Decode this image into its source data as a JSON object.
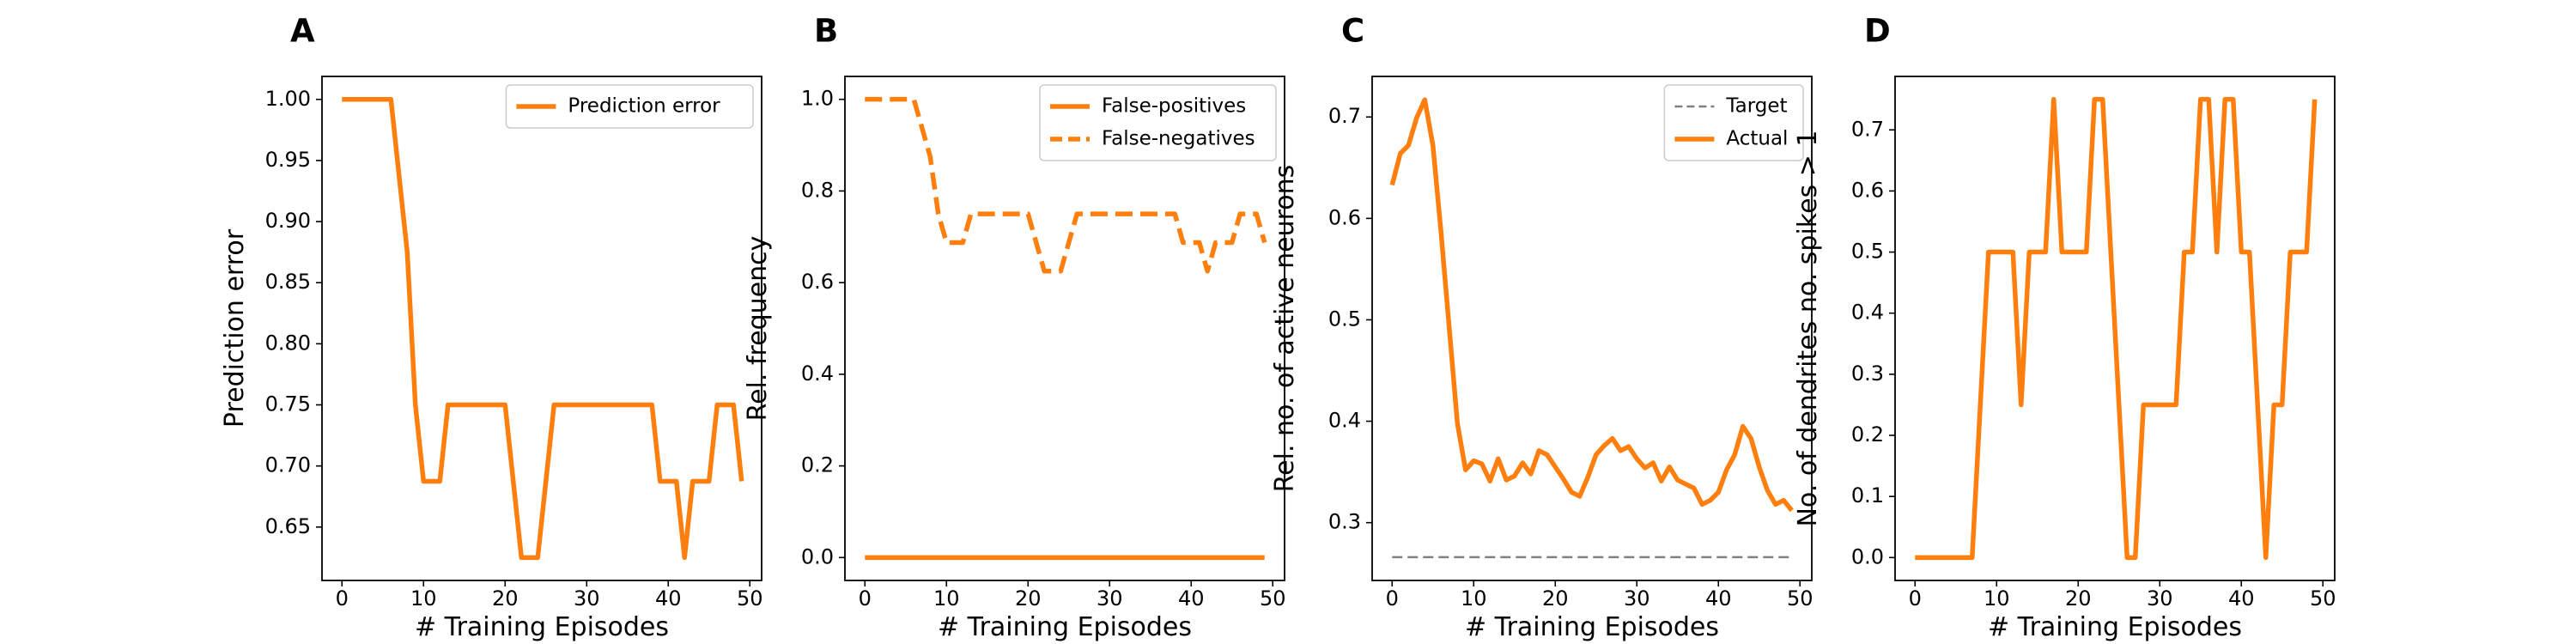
{
  "chart_data": [
    {
      "panel": "A",
      "type": "line",
      "xlabel": "# Training Episodes",
      "ylabel": "Prediction error",
      "xlim": [
        -2.45,
        51.45
      ],
      "ylim": [
        0.6063,
        1.0188
      ],
      "xticks": [
        0,
        10,
        20,
        30,
        40,
        50
      ],
      "yticks": [
        0.65,
        0.7,
        0.75,
        0.8,
        0.85,
        0.9,
        0.95,
        1.0
      ],
      "ytick_labels": [
        "0.65",
        "0.70",
        "0.75",
        "0.80",
        "0.85",
        "0.90",
        "0.95",
        "1.00"
      ],
      "legend_position": "top-right",
      "grid": false,
      "series": [
        {
          "name": "Prediction error",
          "color": "#ff7f0e",
          "style": "solid",
          "x": [
            0,
            1,
            2,
            3,
            4,
            5,
            6,
            7,
            8,
            9,
            10,
            11,
            12,
            13,
            14,
            15,
            16,
            17,
            18,
            19,
            20,
            21,
            22,
            23,
            24,
            25,
            26,
            27,
            28,
            29,
            30,
            31,
            32,
            33,
            34,
            35,
            36,
            37,
            38,
            39,
            40,
            41,
            42,
            43,
            44,
            45,
            46,
            47,
            48,
            49
          ],
          "y": [
            1.0,
            1.0,
            1.0,
            1.0,
            1.0,
            1.0,
            1.0,
            0.9375,
            0.875,
            0.75,
            0.6875,
            0.6875,
            0.6875,
            0.75,
            0.75,
            0.75,
            0.75,
            0.75,
            0.75,
            0.75,
            0.75,
            0.6875,
            0.625,
            0.625,
            0.625,
            0.6875,
            0.75,
            0.75,
            0.75,
            0.75,
            0.75,
            0.75,
            0.75,
            0.75,
            0.75,
            0.75,
            0.75,
            0.75,
            0.75,
            0.6875,
            0.6875,
            0.6875,
            0.625,
            0.6875,
            0.6875,
            0.6875,
            0.75,
            0.75,
            0.75,
            0.6875
          ]
        }
      ]
    },
    {
      "panel": "B",
      "type": "line",
      "xlabel": "# Training Episodes",
      "ylabel": "Rel. frequency",
      "xlim": [
        -2.45,
        51.45
      ],
      "ylim": [
        -0.05,
        1.05
      ],
      "xticks": [
        0,
        10,
        20,
        30,
        40,
        50
      ],
      "yticks": [
        0.0,
        0.2,
        0.4,
        0.6,
        0.8,
        1.0
      ],
      "ytick_labels": [
        "0.0",
        "0.2",
        "0.4",
        "0.6",
        "0.8",
        "1.0"
      ],
      "legend_position": "top-right",
      "grid": false,
      "series": [
        {
          "name": "False-positives",
          "color": "#ff7f0e",
          "style": "solid",
          "x": [
            0,
            49
          ],
          "y": [
            0.0,
            0.0
          ]
        },
        {
          "name": "False-negatives",
          "color": "#ff7f0e",
          "style": "dashed",
          "x": [
            0,
            1,
            2,
            3,
            4,
            5,
            6,
            7,
            8,
            9,
            10,
            11,
            12,
            13,
            14,
            15,
            16,
            17,
            18,
            19,
            20,
            21,
            22,
            23,
            24,
            25,
            26,
            27,
            28,
            29,
            30,
            31,
            32,
            33,
            34,
            35,
            36,
            37,
            38,
            39,
            40,
            41,
            42,
            43,
            44,
            45,
            46,
            47,
            48,
            49
          ],
          "y": [
            1.0,
            1.0,
            1.0,
            1.0,
            1.0,
            1.0,
            1.0,
            0.9375,
            0.875,
            0.75,
            0.6875,
            0.6875,
            0.6875,
            0.75,
            0.75,
            0.75,
            0.75,
            0.75,
            0.75,
            0.75,
            0.75,
            0.6875,
            0.625,
            0.625,
            0.625,
            0.6875,
            0.75,
            0.75,
            0.75,
            0.75,
            0.75,
            0.75,
            0.75,
            0.75,
            0.75,
            0.75,
            0.75,
            0.75,
            0.75,
            0.6875,
            0.6875,
            0.6875,
            0.625,
            0.6875,
            0.6875,
            0.6875,
            0.75,
            0.75,
            0.75,
            0.6875
          ]
        }
      ]
    },
    {
      "panel": "C",
      "type": "line",
      "xlabel": "# Training Episodes",
      "ylabel": "Rel. no. of active neurons",
      "xlim": [
        -2.45,
        51.45
      ],
      "ylim": [
        0.243,
        0.74
      ],
      "xticks": [
        0,
        10,
        20,
        30,
        40,
        50
      ],
      "yticks": [
        0.3,
        0.4,
        0.5,
        0.6,
        0.7
      ],
      "ytick_labels": [
        "0.3",
        "0.4",
        "0.5",
        "0.6",
        "0.7"
      ],
      "legend_position": "top-right",
      "grid": false,
      "series": [
        {
          "name": "Target",
          "color": "#808080",
          "style": "dashed",
          "x": [
            0,
            49
          ],
          "y": [
            0.266,
            0.266
          ]
        },
        {
          "name": "Actual",
          "color": "#ff7f0e",
          "style": "solid",
          "x": [
            0,
            1,
            2,
            3,
            4,
            5,
            6,
            7,
            8,
            9,
            10,
            11,
            12,
            13,
            14,
            15,
            16,
            17,
            18,
            19,
            20,
            21,
            22,
            23,
            24,
            25,
            26,
            27,
            28,
            29,
            30,
            31,
            32,
            33,
            34,
            35,
            36,
            37,
            38,
            39,
            40,
            41,
            42,
            43,
            44,
            45,
            46,
            47,
            48,
            49
          ],
          "y": [
            0.633,
            0.664,
            0.672,
            0.699,
            0.717,
            0.672,
            0.586,
            0.492,
            0.398,
            0.352,
            0.361,
            0.358,
            0.341,
            0.363,
            0.342,
            0.346,
            0.359,
            0.348,
            0.371,
            0.367,
            0.355,
            0.343,
            0.33,
            0.326,
            0.345,
            0.367,
            0.376,
            0.383,
            0.371,
            0.375,
            0.363,
            0.354,
            0.359,
            0.341,
            0.355,
            0.342,
            0.338,
            0.334,
            0.318,
            0.322,
            0.33,
            0.352,
            0.367,
            0.395,
            0.383,
            0.355,
            0.332,
            0.318,
            0.322,
            0.312
          ]
        }
      ]
    },
    {
      "panel": "D",
      "type": "line",
      "xlabel": "# Training Episodes",
      "ylabel": "No. of dendrites no. spikes > 1",
      "xlim": [
        -2.45,
        51.45
      ],
      "ylim": [
        -0.0375,
        0.7875
      ],
      "xticks": [
        0,
        10,
        20,
        30,
        40,
        50
      ],
      "yticks": [
        0.0,
        0.1,
        0.2,
        0.3,
        0.4,
        0.5,
        0.6,
        0.7
      ],
      "ytick_labels": [
        "0.0",
        "0.1",
        "0.2",
        "0.3",
        "0.4",
        "0.5",
        "0.6",
        "0.7"
      ],
      "legend_position": "none",
      "grid": false,
      "series": [
        {
          "color": "#ff7f0e",
          "style": "solid",
          "x": [
            0,
            1,
            2,
            3,
            4,
            5,
            6,
            7,
            8,
            9,
            10,
            11,
            12,
            13,
            14,
            15,
            16,
            17,
            18,
            19,
            20,
            21,
            22,
            23,
            24,
            25,
            26,
            27,
            28,
            29,
            30,
            31,
            32,
            33,
            34,
            35,
            36,
            37,
            38,
            39,
            40,
            41,
            42,
            43,
            44,
            45,
            46,
            47,
            48,
            49
          ],
          "y": [
            0.0,
            0.0,
            0.0,
            0.0,
            0.0,
            0.0,
            0.0,
            0.0,
            0.25,
            0.5,
            0.5,
            0.5,
            0.5,
            0.25,
            0.5,
            0.5,
            0.5,
            0.75,
            0.5,
            0.5,
            0.5,
            0.5,
            0.75,
            0.75,
            0.5,
            0.25,
            0.0,
            0.0,
            0.25,
            0.25,
            0.25,
            0.25,
            0.25,
            0.5,
            0.5,
            0.75,
            0.75,
            0.5,
            0.75,
            0.75,
            0.5,
            0.5,
            0.25,
            0.0,
            0.25,
            0.25,
            0.5,
            0.5,
            0.5,
            0.75
          ]
        }
      ]
    }
  ]
}
